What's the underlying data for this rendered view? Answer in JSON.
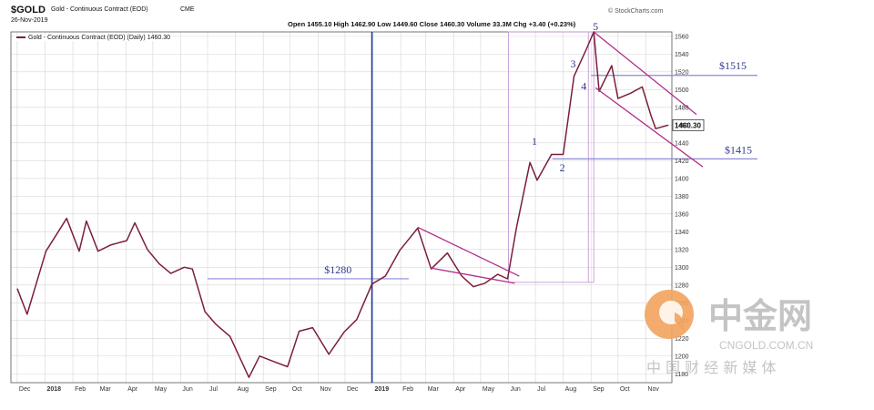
{
  "header": {
    "symbol": "$GOLD",
    "name": "Gold - Continuous Contract (EOD)",
    "exchange": "CME",
    "date": "26-Nov-2019",
    "quote": "Open 1455.10  High 1462.90  Low 1449.60  Close 1460.30  Volume 33.3M  Chg +3.40 (+0.23%)",
    "source": "© StockCharts.com",
    "legend": "Gold - Continuous Contract (EOD) (Daily) 1460.30",
    "last_price": "1460.30"
  },
  "annotations": {
    "level_1280": "$1280",
    "level_1515": "$1515",
    "level_1415": "$1415",
    "wave_1": "1",
    "wave_2": "2",
    "wave_3": "3",
    "wave_4": "4",
    "wave_5": "5"
  },
  "watermark": {
    "logo_text": "中金网",
    "site": "CNGOLD.COM.CN",
    "tagline": "中 国 财 经 新 媒 体"
  },
  "colors": {
    "price_line": "#7a1f3a",
    "channel": "#b02c8c",
    "level_line": "#8a8ad8",
    "divider": "#1f3fa0",
    "annotation": "#2e3a8c",
    "watermark_orange": "#f2a35e",
    "watermark_gray": "#c4c4c4"
  },
  "chart_data": {
    "type": "line",
    "title": "Gold - Continuous Contract (EOD)",
    "xlabel": "",
    "ylabel": "",
    "grid": true,
    "legend_position": "top-left",
    "x_ticks": [
      "Dec",
      "2018",
      "Feb",
      "Mar",
      "Apr",
      "May",
      "Jun",
      "Jul",
      "Aug",
      "Sep",
      "Oct",
      "Nov",
      "Dec",
      "2019",
      "Feb",
      "Mar",
      "Apr",
      "May",
      "Jun",
      "Jul",
      "Aug",
      "Sep",
      "Oct",
      "Nov"
    ],
    "y_ticks": [
      1180,
      1200,
      1220,
      1240,
      1260,
      1280,
      1300,
      1320,
      1340,
      1360,
      1380,
      1400,
      1420,
      1440,
      1460,
      1480,
      1500,
      1520,
      1540,
      1560
    ],
    "ylim": [
      1170,
      1565
    ],
    "x": [
      "2017-12-01",
      "2017-12-12",
      "2018-01-02",
      "2018-01-25",
      "2018-02-08",
      "2018-02-16",
      "2018-03-01",
      "2018-03-15",
      "2018-04-02",
      "2018-04-11",
      "2018-04-25",
      "2018-05-08",
      "2018-05-21",
      "2018-06-05",
      "2018-06-14",
      "2018-06-28",
      "2018-07-10",
      "2018-07-26",
      "2018-08-16",
      "2018-08-28",
      "2018-09-12",
      "2018-09-28",
      "2018-10-11",
      "2018-10-26",
      "2018-11-13",
      "2018-11-30",
      "2018-12-14",
      "2018-12-31",
      "2019-01-15",
      "2019-01-31",
      "2019-02-20",
      "2019-03-07",
      "2019-03-25",
      "2019-04-10",
      "2019-04-23",
      "2019-05-06",
      "2019-05-20",
      "2019-05-31",
      "2019-06-10",
      "2019-06-25",
      "2019-07-03",
      "2019-07-19",
      "2019-08-01",
      "2019-08-13",
      "2019-08-27",
      "2019-09-04",
      "2019-09-10",
      "2019-09-24",
      "2019-10-01",
      "2019-10-15",
      "2019-10-28",
      "2019-11-07",
      "2019-11-12",
      "2019-11-26"
    ],
    "values": [
      1276,
      1247,
      1318,
      1355,
      1318,
      1352,
      1318,
      1325,
      1330,
      1350,
      1320,
      1304,
      1293,
      1300,
      1298,
      1250,
      1236,
      1222,
      1176,
      1200,
      1194,
      1188,
      1228,
      1232,
      1202,
      1227,
      1241,
      1281,
      1290,
      1319,
      1344,
      1298,
      1316,
      1290,
      1278,
      1282,
      1292,
      1287,
      1345,
      1418,
      1398,
      1427,
      1427,
      1515,
      1546,
      1565,
      1498,
      1527,
      1490,
      1496,
      1503,
      1470,
      1456,
      1460
    ]
  }
}
